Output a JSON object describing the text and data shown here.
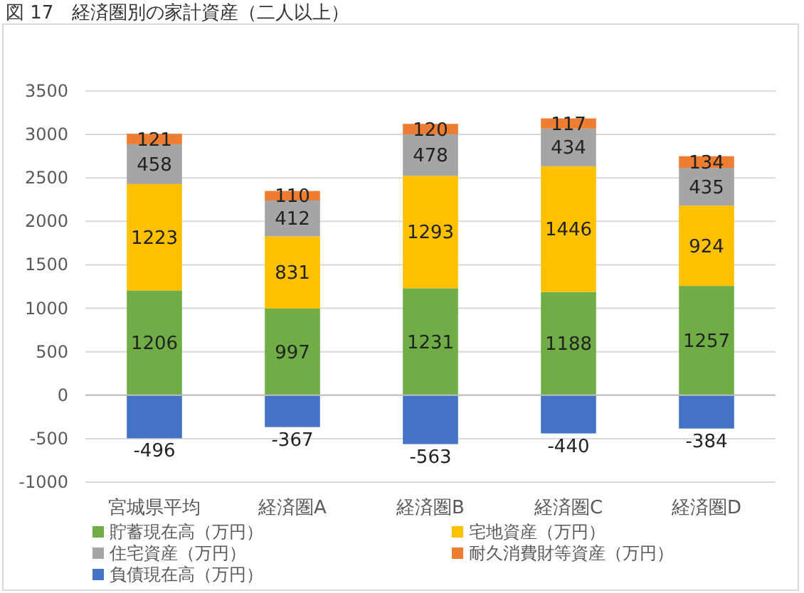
{
  "chart_data": {
    "type": "bar",
    "title": "図 17　経済圏別の家計資産（二人以上）",
    "stacked": true,
    "categories": [
      "宮城県平均",
      "経済圏A",
      "経済圏B",
      "経済圏C",
      "経済圏D"
    ],
    "series": [
      {
        "name": "貯蓄現在高（万円）",
        "color": "#70ad47",
        "values": [
          1206,
          997,
          1231,
          1188,
          1257
        ]
      },
      {
        "name": "宅地資産（万円）",
        "color": "#ffc000",
        "values": [
          1223,
          831,
          1293,
          1446,
          924
        ]
      },
      {
        "name": "住宅資産（万円）",
        "color": "#a5a5a5",
        "values": [
          458,
          412,
          478,
          434,
          435
        ]
      },
      {
        "name": "耐久消費財等資産（万円）",
        "color": "#ed7d31",
        "values": [
          121,
          110,
          120,
          117,
          134
        ]
      },
      {
        "name": "負債現在高（万円）",
        "color": "#4472c4",
        "values": [
          -496,
          -367,
          -563,
          -440,
          -384
        ]
      }
    ],
    "ylim": [
      -1000,
      3500
    ],
    "yticks": [
      -1000,
      -500,
      0,
      500,
      1000,
      1500,
      2000,
      2500,
      3000,
      3500
    ],
    "grid": "y",
    "data_labels": true,
    "legend": "bottom"
  }
}
